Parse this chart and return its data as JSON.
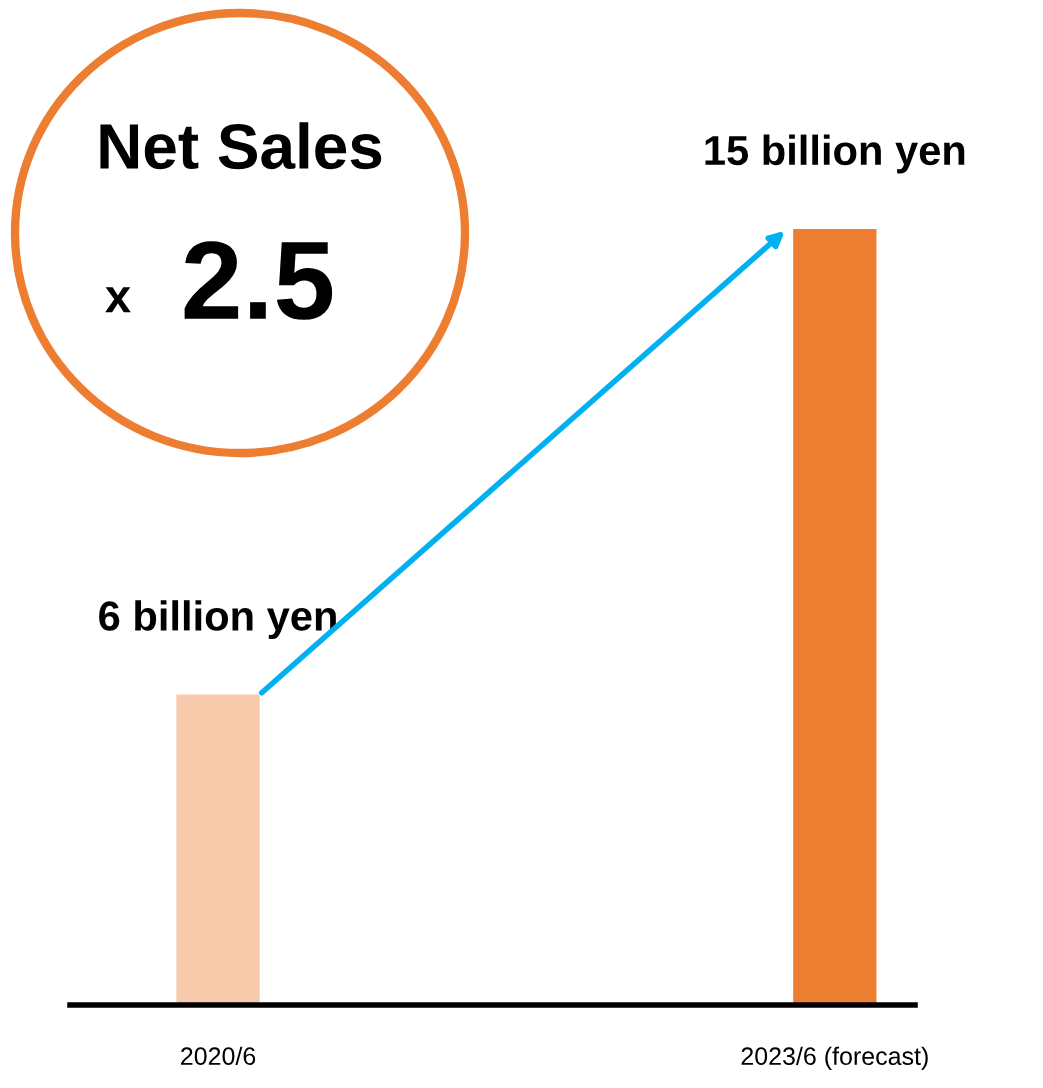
{
  "chart_data": {
    "type": "bar",
    "categories": [
      "2020/6",
      "2023/6 (forecast)"
    ],
    "values": [
      6,
      15
    ],
    "value_labels": [
      "6 billion yen",
      "15 billion yen"
    ],
    "colors": [
      "#f8cbad",
      "#ed7d31"
    ],
    "ylim": [
      0,
      15
    ],
    "tick_labels": "x",
    "grid": false,
    "legend": false,
    "annotations": [
      "Net Sales",
      "x",
      "2.5"
    ]
  }
}
